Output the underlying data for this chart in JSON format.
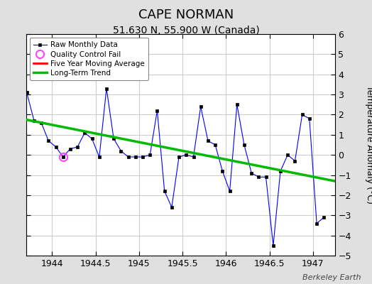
{
  "title": "CAPE NORMAN",
  "subtitle": "51.630 N, 55.900 W (Canada)",
  "ylabel": "Temperature Anomaly (°C)",
  "watermark": "Berkeley Earth",
  "xlim": [
    1943.7,
    1947.25
  ],
  "ylim": [
    -5,
    6
  ],
  "yticks": [
    -5,
    -4,
    -3,
    -2,
    -1,
    0,
    1,
    2,
    3,
    4,
    5,
    6
  ],
  "xticks": [
    1944,
    1944.5,
    1945,
    1945.5,
    1946,
    1946.5,
    1947
  ],
  "raw_x": [
    1943.708,
    1943.792,
    1943.875,
    1943.958,
    1944.042,
    1944.125,
    1944.208,
    1944.292,
    1944.375,
    1944.458,
    1944.542,
    1944.625,
    1944.708,
    1944.792,
    1944.875,
    1944.958,
    1945.042,
    1945.125,
    1945.208,
    1945.292,
    1945.375,
    1945.458,
    1945.542,
    1945.625,
    1945.708,
    1945.792,
    1945.875,
    1945.958,
    1946.042,
    1946.125,
    1946.208,
    1946.292,
    1946.375,
    1946.458,
    1946.542,
    1946.625,
    1946.708,
    1946.792,
    1946.875,
    1946.958,
    1947.042,
    1947.125
  ],
  "raw_y": [
    3.1,
    1.7,
    1.6,
    0.7,
    0.4,
    -0.1,
    0.3,
    0.4,
    1.1,
    0.8,
    -0.1,
    3.3,
    0.8,
    0.2,
    -0.1,
    -0.1,
    -0.1,
    0.0,
    2.2,
    -1.8,
    -2.6,
    -0.1,
    0.0,
    -0.1,
    2.4,
    0.7,
    0.5,
    -0.8,
    -1.8,
    2.5,
    0.5,
    -0.9,
    -1.1,
    -1.1,
    -4.5,
    -0.8,
    0.0,
    -0.3,
    2.0,
    1.8,
    -3.4,
    -3.1
  ],
  "qc_fail_x": [
    1944.125
  ],
  "qc_fail_y": [
    -0.1
  ],
  "trend_x": [
    1943.7,
    1947.25
  ],
  "trend_y": [
    1.75,
    -1.3
  ],
  "raw_color": "#0000ff",
  "trend_color": "#00bb00",
  "moving_avg_color": "#ff0000",
  "qc_color": "#ff44ff",
  "bg_color": "#e0e0e0",
  "plot_bg_color": "#ffffff",
  "grid_color": "#cccccc",
  "title_fontsize": 13,
  "subtitle_fontsize": 10,
  "label_fontsize": 9,
  "tick_fontsize": 9
}
